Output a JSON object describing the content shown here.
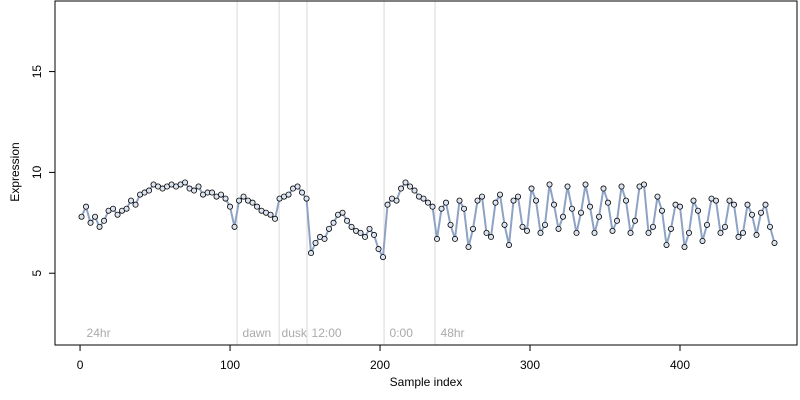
{
  "chart_data": {
    "type": "line",
    "markers": true,
    "x_label": "Sample index",
    "y_label": "Expression",
    "xlim": [
      -16.7,
      478
    ],
    "ylim": [
      1.44,
      18.5
    ],
    "xticks": [
      0,
      100,
      200,
      300,
      400
    ],
    "yticks": [
      5,
      10,
      15
    ],
    "reference_lines": [
      104.7,
      132.7,
      151.3,
      202.7,
      236.7
    ],
    "reference_color": "#d9d9d9",
    "annotations": [
      {
        "text": "24hr",
        "x": 3
      },
      {
        "text": "dawn",
        "x": 107
      },
      {
        "text": "dusk",
        "x": 133
      },
      {
        "text": "12:00",
        "x": 153
      },
      {
        "text": "0:00",
        "x": 205
      },
      {
        "text": "48hr",
        "x": 239
      }
    ],
    "annotation_y": 2,
    "x": [
      1,
      4,
      7,
      10,
      13,
      16,
      19,
      22,
      25,
      28,
      31,
      34,
      37,
      40,
      43,
      46,
      49,
      52,
      55,
      58,
      61,
      64,
      67,
      70,
      73,
      76,
      79,
      82,
      85,
      88,
      91,
      94,
      97,
      100,
      103,
      106,
      109,
      112,
      115,
      118,
      121,
      124,
      127,
      130,
      133,
      136,
      139,
      142,
      145,
      148,
      151,
      154,
      157,
      160,
      163,
      166,
      169,
      172,
      175,
      178,
      181,
      184,
      187,
      190,
      193,
      196,
      199,
      202,
      205,
      208,
      211,
      214,
      217,
      220,
      223,
      226,
      229,
      232,
      235,
      238,
      241,
      244,
      247,
      250,
      253,
      256,
      259,
      262,
      265,
      268,
      271,
      274,
      277,
      280,
      283,
      286,
      289,
      292,
      295,
      298,
      301,
      304,
      307,
      310,
      313,
      316,
      319,
      322,
      325,
      328,
      331,
      334,
      337,
      340,
      343,
      346,
      349,
      352,
      355,
      358,
      361,
      364,
      367,
      370,
      373,
      376,
      379,
      382,
      385,
      388,
      391,
      394,
      397,
      400,
      403,
      406,
      409,
      412,
      415,
      418,
      421,
      424,
      427,
      430,
      433,
      436,
      439,
      442,
      445,
      448,
      451,
      454,
      457,
      460,
      463
    ],
    "values": [
      7.8,
      8.3,
      7.5,
      7.8,
      7.3,
      7.6,
      8.1,
      8.2,
      7.9,
      8.1,
      8.2,
      8.6,
      8.4,
      8.9,
      9.0,
      9.1,
      9.4,
      9.3,
      9.2,
      9.3,
      9.4,
      9.3,
      9.4,
      9.5,
      9.2,
      9.1,
      9.3,
      8.9,
      9.0,
      9.0,
      8.8,
      8.9,
      8.7,
      8.3,
      7.3,
      8.6,
      8.8,
      8.6,
      8.5,
      8.3,
      8.1,
      8.0,
      7.9,
      7.7,
      8.7,
      8.8,
      8.9,
      9.2,
      9.3,
      9.0,
      8.7,
      6.0,
      6.5,
      6.8,
      6.7,
      7.2,
      7.5,
      7.9,
      8.0,
      7.6,
      7.3,
      7.1,
      7.0,
      6.8,
      7.2,
      6.9,
      6.2,
      5.8,
      8.4,
      8.7,
      8.6,
      9.2,
      9.5,
      9.3,
      9.1,
      8.8,
      8.7,
      8.5,
      8.3,
      6.7,
      8.2,
      8.5,
      7.4,
      6.7,
      8.6,
      8.2,
      6.3,
      7.2,
      8.6,
      8.8,
      7.0,
      6.8,
      8.5,
      8.9,
      7.4,
      6.4,
      8.6,
      8.8,
      7.3,
      7.1,
      9.2,
      8.6,
      7.0,
      7.4,
      9.4,
      8.4,
      7.2,
      7.8,
      9.3,
      8.2,
      7.0,
      8.0,
      9.4,
      8.3,
      7.0,
      7.8,
      9.2,
      8.5,
      7.1,
      7.6,
      9.3,
      8.6,
      7.0,
      7.6,
      9.3,
      9.4,
      7.0,
      7.3,
      8.8,
      8.1,
      6.4,
      7.2,
      8.4,
      8.3,
      6.3,
      7.0,
      8.6,
      8.1,
      6.6,
      7.4,
      8.7,
      8.6,
      7.0,
      7.3,
      8.6,
      8.4,
      6.8,
      7.0,
      8.4,
      7.9,
      6.9,
      8.0,
      8.4,
      7.3,
      6.5
    ],
    "line_color": "#8ea2c4",
    "point_color": "#dbe4f0"
  }
}
